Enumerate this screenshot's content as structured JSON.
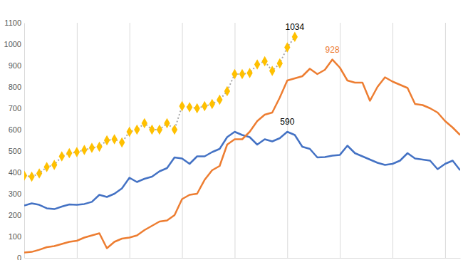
{
  "chart_data": {
    "type": "line",
    "x": [
      0,
      1,
      2,
      3,
      4,
      5,
      6,
      7,
      8,
      9,
      10,
      11,
      12,
      13,
      14,
      15,
      16,
      17,
      18,
      19,
      20,
      21,
      22,
      23,
      24,
      25,
      26,
      27,
      28,
      29,
      30,
      31,
      32,
      33,
      34,
      35,
      36,
      37,
      38,
      39,
      40,
      41,
      42,
      43,
      44,
      45,
      46,
      47,
      48,
      49,
      50,
      51,
      52,
      53,
      54,
      55,
      56,
      57,
      58
    ],
    "xlim": [
      0,
      58
    ],
    "xticks": [
      7,
      14,
      21,
      28,
      35,
      42,
      49,
      56
    ],
    "ylim": [
      0,
      1100
    ],
    "yticks": [
      0,
      100,
      200,
      300,
      400,
      500,
      600,
      700,
      800,
      900,
      1000,
      1100
    ],
    "grid": "x",
    "tick_labels": "y",
    "series": [
      {
        "color": "#4472c4",
        "marker": "none",
        "line_style": "solid",
        "values": [
          245,
          255,
          248,
          232,
          228,
          240,
          250,
          248,
          252,
          262,
          295,
          285,
          300,
          325,
          375,
          355,
          370,
          380,
          405,
          420,
          470,
          465,
          440,
          475,
          475,
          495,
          510,
          565,
          590,
          575,
          565,
          530,
          555,
          545,
          560,
          590,
          575,
          520,
          510,
          470,
          472,
          478,
          482,
          525,
          490,
          475,
          460,
          445,
          435,
          440,
          455,
          490,
          465,
          460,
          455,
          415,
          440,
          455,
          410
        ]
      },
      {
        "color": "#ed7d31",
        "marker": "none",
        "line_style": "solid",
        "values": [
          25,
          28,
          38,
          50,
          55,
          65,
          75,
          80,
          95,
          105,
          115,
          45,
          75,
          90,
          95,
          105,
          130,
          150,
          170,
          175,
          200,
          275,
          295,
          300,
          365,
          410,
          430,
          530,
          555,
          555,
          590,
          640,
          670,
          680,
          750,
          830,
          840,
          850,
          885,
          860,
          880,
          928,
          890,
          830,
          820,
          820,
          735,
          800,
          845,
          825,
          810,
          795,
          720,
          715,
          700,
          680,
          640,
          610,
          575
        ]
      },
      {
        "color": "#ffc000",
        "marker": "diamond",
        "line_style": "dotted",
        "values": [
          385,
          380,
          395,
          425,
          435,
          475,
          490,
          495,
          505,
          515,
          520,
          550,
          555,
          540,
          590,
          600,
          630,
          600,
          600,
          630,
          600,
          710,
          705,
          700,
          710,
          720,
          740,
          780,
          860,
          860,
          865,
          905,
          920,
          875,
          910,
          985,
          1034,
          null,
          null,
          null,
          null,
          null,
          null,
          null,
          null,
          null,
          null,
          null,
          null,
          null,
          null,
          null,
          null,
          null,
          null,
          null,
          null,
          null,
          null
        ]
      }
    ],
    "annotations": [
      {
        "text": "1034",
        "x": 36,
        "y": 1034,
        "color": "#000000"
      },
      {
        "text": "928",
        "x": 41,
        "y": 928,
        "color": "#ed7d31"
      },
      {
        "text": "590",
        "x": 35,
        "y": 590,
        "color": "#000000"
      }
    ]
  }
}
